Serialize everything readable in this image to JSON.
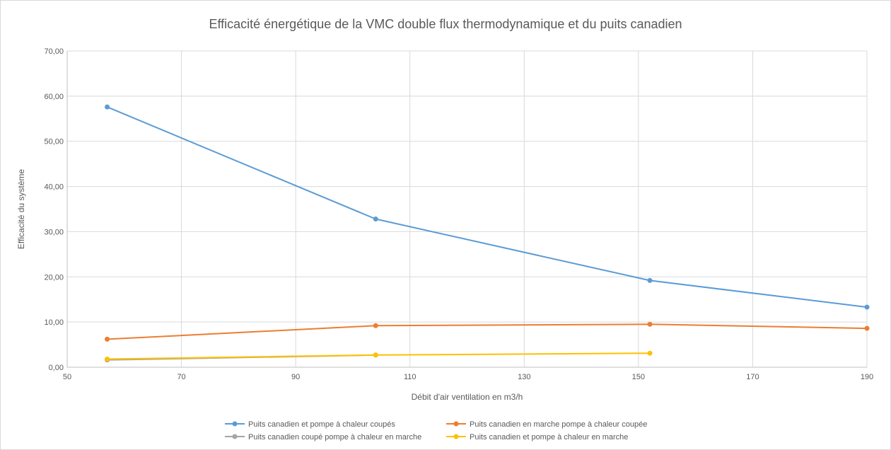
{
  "chart_data": {
    "type": "line",
    "title": "Efficacité énergétique de la VMC double flux thermodynamique et du puits canadien",
    "xlabel": "Débit d'air ventilation en m3/h",
    "ylabel": "Efficacité du système",
    "xlim": [
      50,
      190
    ],
    "ylim": [
      0,
      70
    ],
    "xticks": [
      50,
      70,
      90,
      110,
      130,
      150,
      170,
      190
    ],
    "yticks": [
      0,
      10,
      20,
      30,
      40,
      50,
      60,
      70
    ],
    "xtick_labels": [
      "50",
      "70",
      "90",
      "110",
      "130",
      "150",
      "170",
      "190"
    ],
    "ytick_labels": [
      "0,00",
      "10,00",
      "20,00",
      "30,00",
      "40,00",
      "50,00",
      "60,00",
      "70,00"
    ],
    "grid": true,
    "legend_position": "bottom",
    "series": [
      {
        "name": "Puits canadien et pompe à chaleur coupés",
        "color": "#5b9bd5",
        "points": [
          [
            57,
            57.6
          ],
          [
            104,
            32.8
          ],
          [
            152,
            19.2
          ],
          [
            190,
            13.3
          ]
        ]
      },
      {
        "name": "Puits canadien en marche pompe à chaleur coupée",
        "color": "#ed7d31",
        "points": [
          [
            57,
            6.2
          ],
          [
            104,
            9.2
          ],
          [
            152,
            9.5
          ],
          [
            190,
            8.6
          ]
        ]
      },
      {
        "name": "Puits canadien coupé pompe à chaleur en marche",
        "color": "#a5a5a5",
        "points": [
          [
            57,
            1.6
          ],
          [
            104,
            2.7
          ]
        ]
      },
      {
        "name": "Puits canadien et pompe à chaleur en marche",
        "color": "#ffc000",
        "points": [
          [
            57,
            1.8
          ],
          [
            104,
            2.7
          ],
          [
            152,
            3.1
          ]
        ]
      }
    ]
  }
}
